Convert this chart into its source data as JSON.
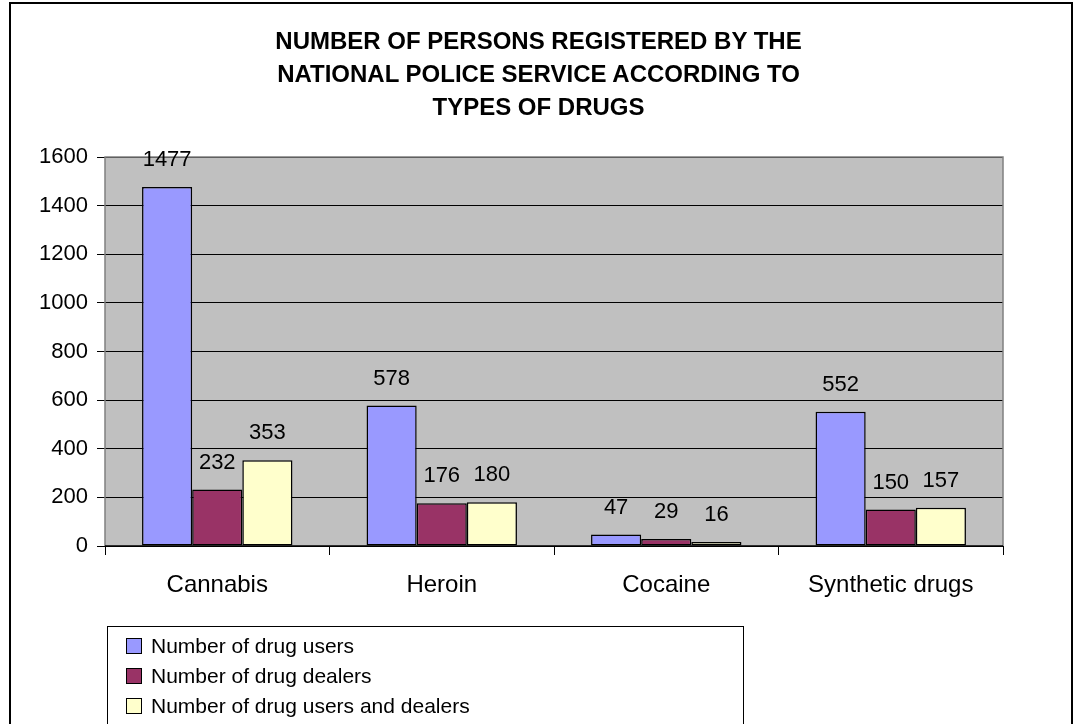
{
  "chart_data": {
    "type": "bar",
    "title": "NUMBER OF PERSONS REGISTERED BY THE NATIONAL POLICE SERVICE ACCORDING TO TYPES OF DRUGS",
    "categories": [
      "Cannabis",
      "Heroin",
      "Cocaine",
      "Synthetic drugs"
    ],
    "series": [
      {
        "name": "Number of drug users",
        "color": "#9999ff",
        "values": [
          1477,
          578,
          47,
          552
        ]
      },
      {
        "name": "Number of drug dealers",
        "color": "#993366",
        "values": [
          232,
          176,
          29,
          150
        ]
      },
      {
        "name": "Number of drug users and dealers",
        "color": "#ffffcc",
        "values": [
          353,
          180,
          16,
          157
        ]
      }
    ],
    "ylim": [
      0,
      1600
    ],
    "yticks": [
      0,
      200,
      400,
      600,
      800,
      1000,
      1200,
      1400,
      1600
    ],
    "grid": "y",
    "legend": "bottom left",
    "data_labels": true
  }
}
